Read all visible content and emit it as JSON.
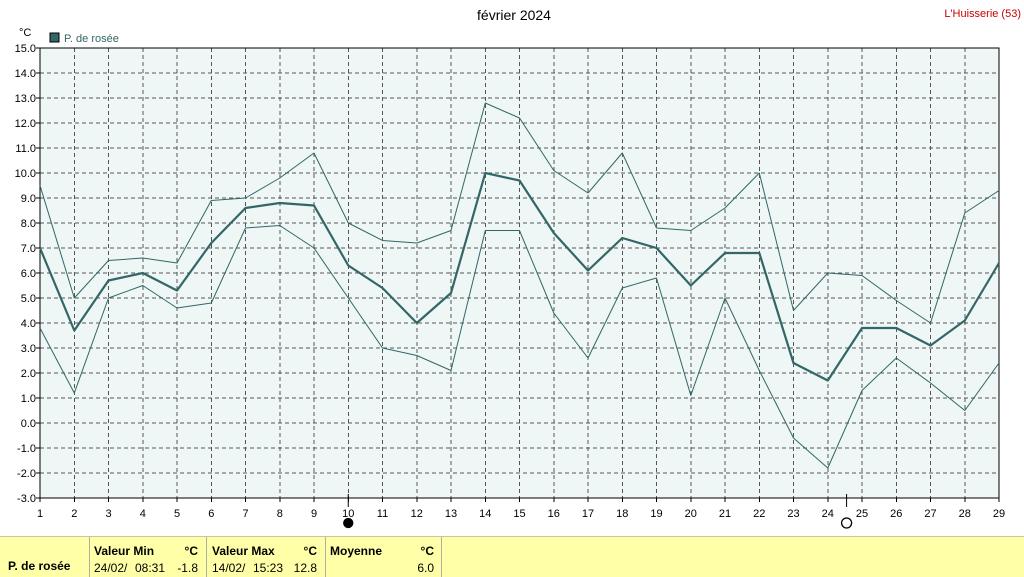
{
  "header": {
    "title": "février 2024",
    "station": "L'Huisserie (53)",
    "unit": "°C"
  },
  "legend": {
    "label": "P. de rosée",
    "color": "#336666"
  },
  "chart_data": {
    "type": "line",
    "title": "février 2024",
    "ylabel": "°C",
    "xlabel": "",
    "ylim": [
      -3.0,
      15.0
    ],
    "ytick_step": 1.0,
    "x": [
      1,
      2,
      3,
      4,
      5,
      6,
      7,
      8,
      9,
      10,
      11,
      12,
      13,
      14,
      15,
      16,
      17,
      18,
      19,
      20,
      21,
      22,
      23,
      24,
      25,
      26,
      27,
      28,
      29
    ],
    "series": [
      {
        "name": "P. de rosée",
        "role": "mean",
        "values": [
          7.0,
          3.7,
          5.7,
          6.0,
          5.3,
          7.2,
          8.6,
          8.8,
          8.7,
          6.3,
          5.4,
          4.0,
          5.2,
          10.0,
          9.7,
          7.6,
          6.1,
          7.4,
          7.0,
          5.5,
          6.8,
          6.8,
          2.4,
          1.7,
          3.8,
          3.8,
          3.1,
          4.1,
          6.4
        ]
      },
      {
        "role": "max",
        "values": [
          9.5,
          5.0,
          6.5,
          6.6,
          6.4,
          8.9,
          9.0,
          9.8,
          10.8,
          8.0,
          7.3,
          7.2,
          7.7,
          12.8,
          12.2,
          10.1,
          9.2,
          10.8,
          7.8,
          7.7,
          8.6,
          10.0,
          4.5,
          6.0,
          5.9,
          4.9,
          4.0,
          8.4,
          9.3
        ]
      },
      {
        "role": "min",
        "values": [
          3.8,
          1.2,
          5.0,
          5.5,
          4.6,
          4.8,
          7.8,
          7.9,
          7.0,
          5.0,
          3.0,
          2.7,
          2.1,
          7.7,
          7.7,
          4.4,
          2.6,
          5.4,
          5.8,
          1.1,
          5.0,
          2.1,
          -0.6,
          -1.8,
          1.3,
          2.6,
          1.6,
          0.5,
          2.4
        ]
      }
    ],
    "grid": true,
    "legend_position": "top-left",
    "moon_phases": [
      {
        "day": 10,
        "phase": "new-moon"
      },
      {
        "day": 24.55,
        "phase": "full-moon"
      }
    ],
    "colors": {
      "plot_bg": "#eef6f6",
      "line": "#336666",
      "grid": "#555555"
    }
  },
  "stats": {
    "row_label": "P. de rosée",
    "min": {
      "header": "Valeur Min",
      "unit": "°C",
      "date": "24/02/",
      "time": "08:31",
      "value": "-1.8"
    },
    "max": {
      "header": "Valeur Max",
      "unit": "°C",
      "date": "14/02/",
      "time": "15:23",
      "value": "12.8"
    },
    "avg": {
      "header": "Moyenne",
      "unit": "°C",
      "value": "6.0"
    }
  }
}
